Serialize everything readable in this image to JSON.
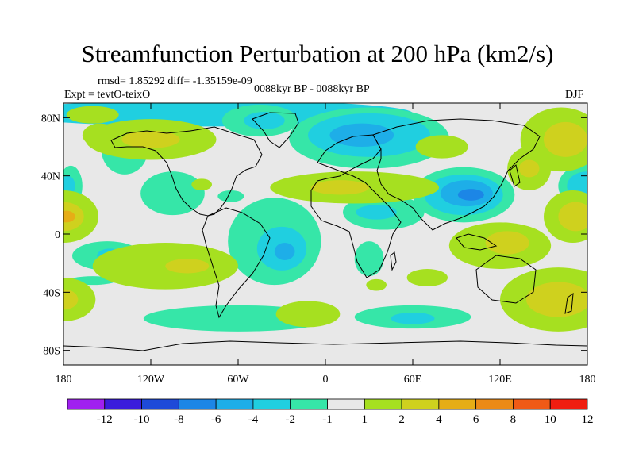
{
  "figure": {
    "title": "Streamfunction Perturbation at 200 hPa (km2/s)",
    "stats_label": "rmsd= 1.85292 diff= -1.35159e-09",
    "experiment_label": "Expt = tevtO-teixO",
    "period_label": "0088kyr BP - 0088kyr BP",
    "season_label": "DJF"
  },
  "map": {
    "x_ticks": [
      "180",
      "120W",
      "60W",
      "0",
      "60E",
      "120E",
      "180"
    ],
    "y_ticks": [
      "80N",
      "40N",
      "0",
      "40S",
      "80S"
    ],
    "x_tick_values": [
      -180,
      -120,
      -60,
      0,
      60,
      120,
      180
    ],
    "y_tick_values": [
      80,
      40,
      0,
      -40,
      -80
    ],
    "lon_range": [
      -180,
      180
    ],
    "lat_range": [
      -90,
      90
    ]
  },
  "chart_data": {
    "type": "heatmap",
    "title": "Streamfunction Perturbation at 200 hPa (km2/s)",
    "xlim": [
      -180,
      180
    ],
    "ylim": [
      -90,
      90
    ],
    "colorbar": {
      "labels": [
        "-12",
        "-10",
        "-8",
        "-6",
        "-4",
        "-2",
        "-1",
        "1",
        "2",
        "4",
        "6",
        "8",
        "10",
        "12"
      ],
      "colors": [
        "#a020f0",
        "#3a1cdc",
        "#1e4ad8",
        "#1c86e6",
        "#1eaee8",
        "#20cfe0",
        "#36e6a8",
        "#e8e8e8",
        "#a6e020",
        "#cfd11e",
        "#e6ad16",
        "#ec8a16",
        "#f05a16",
        "#f01e10"
      ]
    },
    "fields": [
      {
        "level": "-2",
        "color": "#20cfe0",
        "cx": -80,
        "cy": 83,
        "rx": 140,
        "ry": 9
      },
      {
        "level": "-1",
        "color": "#36e6a8",
        "cx": -138,
        "cy": 58,
        "rx": 16,
        "ry": 17
      },
      {
        "level": "-1",
        "color": "#36e6a8",
        "cx": -45,
        "cy": 78,
        "rx": 26,
        "ry": 11
      },
      {
        "level": "-2",
        "color": "#20cfe0",
        "cx": -42,
        "cy": 78,
        "rx": 14,
        "ry": 6
      },
      {
        "level": "-1",
        "color": "#36e6a8",
        "cx": 30,
        "cy": 66,
        "rx": 55,
        "ry": 21
      },
      {
        "level": "-2",
        "color": "#20cfe0",
        "cx": 30,
        "cy": 68,
        "rx": 42,
        "ry": 15
      },
      {
        "level": "-4",
        "color": "#1eaee8",
        "cx": 25,
        "cy": 68,
        "rx": 22,
        "ry": 8
      },
      {
        "level": "-1",
        "color": "#36e6a8",
        "cx": -105,
        "cy": 28,
        "rx": 22,
        "ry": 15
      },
      {
        "level": "-1",
        "color": "#36e6a8",
        "cx": -65,
        "cy": 26,
        "rx": 9,
        "ry": 4
      },
      {
        "level": "-1",
        "color": "#36e6a8",
        "cx": -35,
        "cy": -5,
        "rx": 32,
        "ry": 30
      },
      {
        "level": "-2",
        "color": "#20cfe0",
        "cx": -30,
        "cy": -10,
        "rx": 17,
        "ry": 15
      },
      {
        "level": "-4",
        "color": "#1eaee8",
        "cx": -28,
        "cy": -12,
        "rx": 7,
        "ry": 6
      },
      {
        "level": "-1",
        "color": "#36e6a8",
        "cx": -150,
        "cy": -15,
        "rx": 24,
        "ry": 10
      },
      {
        "level": "-2",
        "color": "#20cfe0",
        "cx": -148,
        "cy": -15,
        "rx": 9,
        "ry": 5
      },
      {
        "level": "-1",
        "color": "#36e6a8",
        "cx": -160,
        "cy": -32,
        "rx": 16,
        "ry": 3
      },
      {
        "level": "-1",
        "color": "#36e6a8",
        "cx": 40,
        "cy": 15,
        "rx": 28,
        "ry": 12
      },
      {
        "level": "-2",
        "color": "#20cfe0",
        "cx": 35,
        "cy": 15,
        "rx": 14,
        "ry": 5
      },
      {
        "level": "-1",
        "color": "#36e6a8",
        "cx": 30,
        "cy": -17,
        "rx": 10,
        "ry": 12
      },
      {
        "level": "-1",
        "color": "#36e6a8",
        "cx": 95,
        "cy": 27,
        "rx": 35,
        "ry": 19
      },
      {
        "level": "-2",
        "color": "#20cfe0",
        "cx": 95,
        "cy": 27,
        "rx": 27,
        "ry": 14
      },
      {
        "level": "-4",
        "color": "#1eaee8",
        "cx": 97,
        "cy": 28,
        "rx": 18,
        "ry": 9
      },
      {
        "level": "-6",
        "color": "#1c86e6",
        "cx": 100,
        "cy": 27,
        "rx": 9,
        "ry": 4
      },
      {
        "level": "-1",
        "color": "#36e6a8",
        "cx": -175,
        "cy": 33,
        "rx": 8,
        "ry": 14
      },
      {
        "level": "-2",
        "color": "#20cfe0",
        "cx": -177,
        "cy": 33,
        "rx": 5,
        "ry": 7
      },
      {
        "level": "-1",
        "color": "#36e6a8",
        "cx": 180,
        "cy": 33,
        "rx": 20,
        "ry": 15
      },
      {
        "level": "-2",
        "color": "#20cfe0",
        "cx": 180,
        "cy": 33,
        "rx": 14,
        "ry": 10
      },
      {
        "level": "-1",
        "color": "#36e6a8",
        "cx": -60,
        "cy": -58,
        "rx": 65,
        "ry": 9
      },
      {
        "level": "-1",
        "color": "#36e6a8",
        "cx": 60,
        "cy": -57,
        "rx": 40,
        "ry": 8
      },
      {
        "level": "-2",
        "color": "#20cfe0",
        "cx": 60,
        "cy": -58,
        "rx": 15,
        "ry": 4
      },
      {
        "level": "2",
        "color": "#a6e020",
        "cx": -180,
        "cy": 12,
        "rx": 24,
        "ry": 18
      },
      {
        "level": "4",
        "color": "#cfd11e",
        "cx": -180,
        "cy": 12,
        "rx": 14,
        "ry": 10
      },
      {
        "level": "6",
        "color": "#e6ad16",
        "cx": -178,
        "cy": 12,
        "rx": 6,
        "ry": 4
      },
      {
        "level": "2",
        "color": "#a6e020",
        "cx": -180,
        "cy": -45,
        "rx": 22,
        "ry": 15
      },
      {
        "level": "4",
        "color": "#cfd11e",
        "cx": -180,
        "cy": -45,
        "rx": 10,
        "ry": 7
      },
      {
        "level": "2",
        "color": "#a6e020",
        "cx": 170,
        "cy": 12,
        "rx": 20,
        "ry": 18
      },
      {
        "level": "4",
        "color": "#cfd11e",
        "cx": 172,
        "cy": 12,
        "rx": 12,
        "ry": 10
      },
      {
        "level": "2",
        "color": "#a6e020",
        "cx": 162,
        "cy": 65,
        "rx": 28,
        "ry": 22
      },
      {
        "level": "4",
        "color": "#cfd11e",
        "cx": 165,
        "cy": 65,
        "rx": 15,
        "ry": 12
      },
      {
        "level": "2",
        "color": "#a6e020",
        "cx": 160,
        "cy": -45,
        "rx": 40,
        "ry": 22
      },
      {
        "level": "4",
        "color": "#cfd11e",
        "cx": 160,
        "cy": -45,
        "rx": 22,
        "ry": 12
      },
      {
        "level": "2",
        "color": "#a6e020",
        "cx": 120,
        "cy": -8,
        "rx": 35,
        "ry": 16
      },
      {
        "level": "4",
        "color": "#cfd11e",
        "cx": 125,
        "cy": -6,
        "rx": 15,
        "ry": 8
      },
      {
        "level": "2",
        "color": "#a6e020",
        "cx": 20,
        "cy": 32,
        "rx": 58,
        "ry": 11
      },
      {
        "level": "4",
        "color": "#cfd11e",
        "cx": 10,
        "cy": 32,
        "rx": 20,
        "ry": 5
      },
      {
        "level": "2",
        "color": "#a6e020",
        "cx": -120,
        "cy": 65,
        "rx": 45,
        "ry": 14
      },
      {
        "level": "4",
        "color": "#cfd11e",
        "cx": -120,
        "cy": 65,
        "rx": 20,
        "ry": 6
      },
      {
        "level": "2",
        "color": "#a6e020",
        "cx": -155,
        "cy": 68,
        "rx": 12,
        "ry": 8
      },
      {
        "level": "2",
        "color": "#a6e020",
        "cx": -160,
        "cy": 82,
        "rx": 18,
        "ry": 6
      },
      {
        "level": "2",
        "color": "#a6e020",
        "cx": -110,
        "cy": -22,
        "rx": 50,
        "ry": 16
      },
      {
        "level": "4",
        "color": "#cfd11e",
        "cx": -95,
        "cy": -22,
        "rx": 15,
        "ry": 5
      },
      {
        "level": "2",
        "color": "#a6e020",
        "cx": -85,
        "cy": 34,
        "rx": 7,
        "ry": 4
      },
      {
        "level": "2",
        "color": "#a6e020",
        "cx": -12,
        "cy": -55,
        "rx": 22,
        "ry": 9
      },
      {
        "level": "2",
        "color": "#a6e020",
        "cx": 80,
        "cy": 60,
        "rx": 18,
        "ry": 8
      },
      {
        "level": "2",
        "color": "#a6e020",
        "cx": 35,
        "cy": -35,
        "rx": 7,
        "ry": 4
      },
      {
        "level": "2",
        "color": "#a6e020",
        "cx": 70,
        "cy": -30,
        "rx": 14,
        "ry": 6
      },
      {
        "level": "2",
        "color": "#a6e020",
        "cx": 140,
        "cy": 45,
        "rx": 15,
        "ry": 15
      },
      {
        "level": "4",
        "color": "#cfd11e",
        "cx": 140,
        "cy": 45,
        "rx": 7,
        "ry": 6
      }
    ]
  }
}
